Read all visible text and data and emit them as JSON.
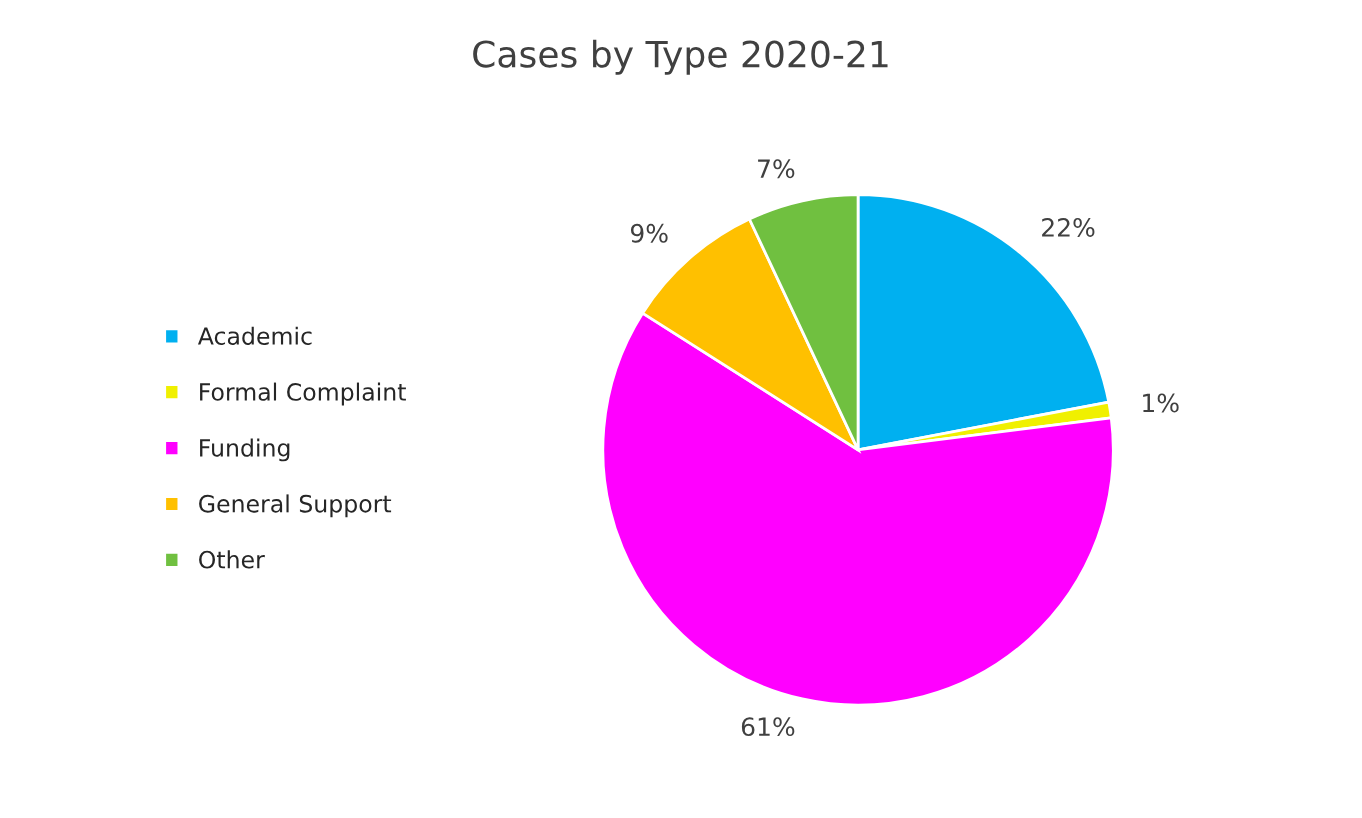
{
  "chart_data": {
    "type": "pie",
    "title": "Cases by Type 2020-21",
    "categories": [
      "Academic",
      "Formal Complaint",
      "Funding",
      "General Support",
      "Other"
    ],
    "values": [
      22,
      1,
      61,
      9,
      7
    ],
    "value_labels": [
      "22%",
      "1%",
      "61%",
      "9%",
      "7%"
    ],
    "colors": [
      "#00b0f0",
      "#f0f000",
      "#ff00ff",
      "#ffc000",
      "#70c040"
    ],
    "legend": "left"
  }
}
